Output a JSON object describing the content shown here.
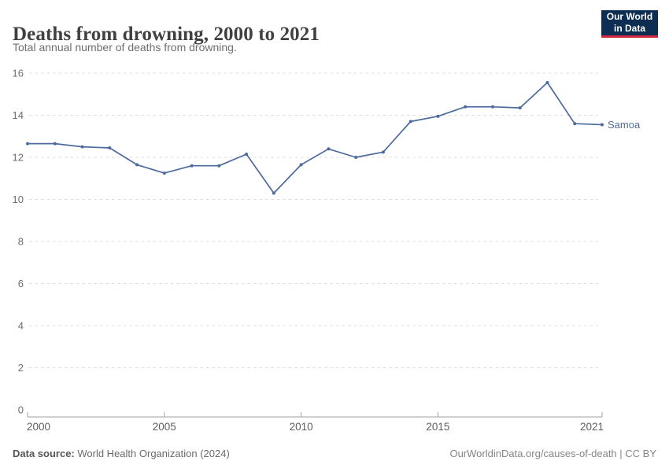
{
  "header": {
    "title": "Deaths from drowning, 2000 to 2021",
    "subtitle": "Total annual number of deaths from drowning.",
    "logo": {
      "line1": "Our World",
      "line2": "in Data",
      "bg_color": "#0d2d52",
      "accent_color": "#d32941"
    }
  },
  "chart_data": {
    "type": "line",
    "title": "Deaths from drowning, 2000 to 2021",
    "xlabel": "",
    "ylabel": "",
    "xlim": [
      2000,
      2021
    ],
    "ylim": [
      0,
      16
    ],
    "xticks": [
      2000,
      2005,
      2010,
      2015,
      2021
    ],
    "yticks": [
      0,
      2,
      4,
      6,
      8,
      10,
      12,
      14,
      16
    ],
    "grid": "horizontal-dashed",
    "legend_position": "end-of-line-label",
    "x": [
      2000,
      2001,
      2002,
      2003,
      2004,
      2005,
      2006,
      2007,
      2008,
      2009,
      2010,
      2011,
      2012,
      2013,
      2014,
      2015,
      2016,
      2017,
      2018,
      2019,
      2020,
      2021
    ],
    "series": [
      {
        "name": "Samoa",
        "color": "#4c6a9c",
        "values": [
          12.65,
          12.65,
          12.5,
          12.45,
          11.65,
          11.25,
          11.6,
          11.6,
          12.15,
          10.3,
          11.65,
          12.4,
          12.0,
          12.25,
          13.7,
          13.95,
          14.4,
          14.4,
          14.35,
          15.55,
          13.6,
          13.55
        ]
      }
    ]
  },
  "footer": {
    "source_label": "Data source:",
    "source_value": " World Health Organization (2024)",
    "license": "OurWorldinData.org/causes-of-death | CC BY"
  }
}
